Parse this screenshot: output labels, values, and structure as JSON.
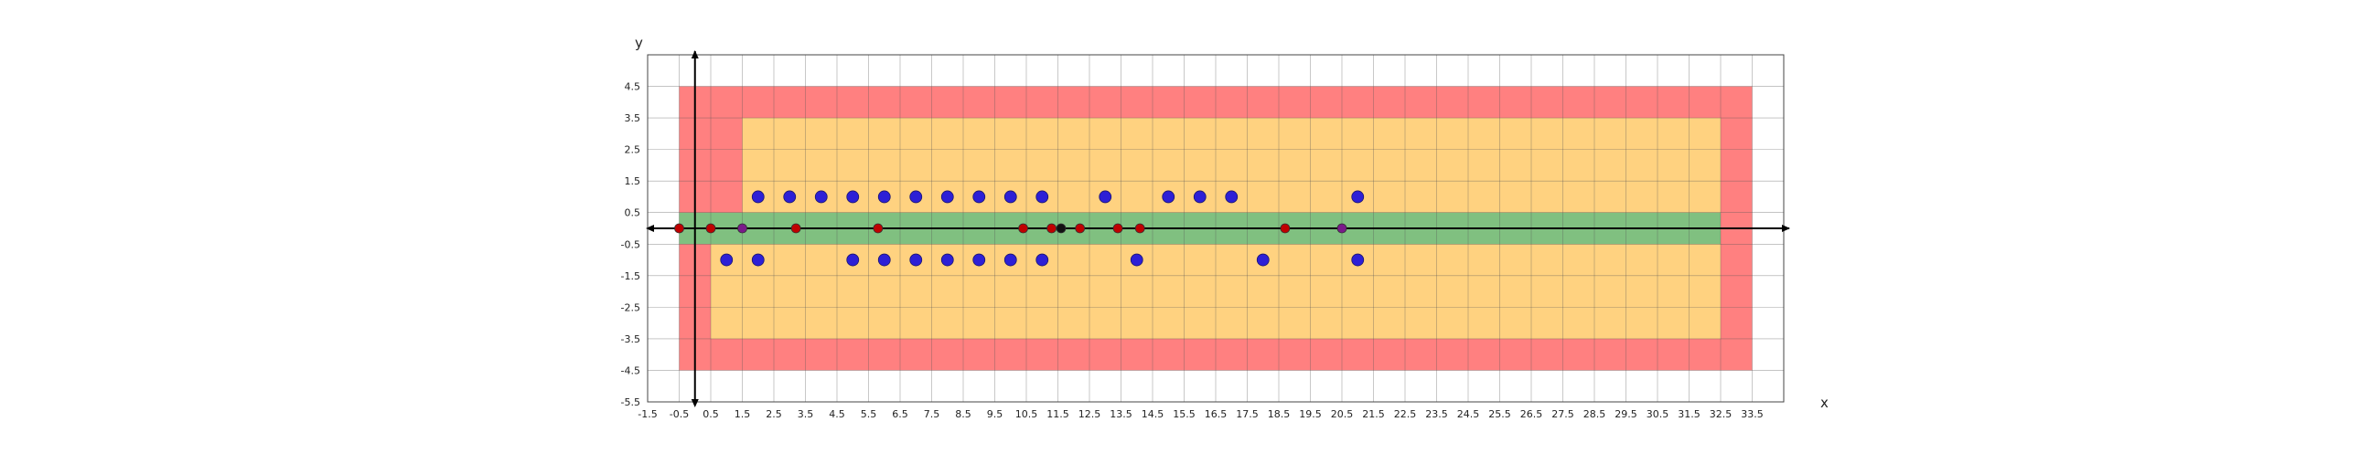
{
  "chart_data": {
    "type": "scatter",
    "title": "",
    "xlabel": "x",
    "ylabel": "y",
    "xlim": [
      -1.5,
      34.5
    ],
    "ylim": [
      -5.5,
      5.5
    ],
    "grid": true,
    "x_ticks": [
      "-1.5",
      "-0.5",
      "0.5",
      "1.5",
      "2.5",
      "3.5",
      "4.5",
      "5.5",
      "6.5",
      "7.5",
      "8.5",
      "9.5",
      "10.5",
      "11.5",
      "12.5",
      "13.5",
      "14.5",
      "15.5",
      "16.5",
      "17.5",
      "18.5",
      "19.5",
      "20.5",
      "21.5",
      "22.5",
      "23.5",
      "24.5",
      "25.5",
      "26.5",
      "27.5",
      "28.5",
      "29.5",
      "30.5",
      "31.5",
      "32.5",
      "33.5"
    ],
    "y_ticks": [
      "4.5",
      "3.5",
      "2.5",
      "1.5",
      "0.5",
      "-0.5",
      "-1.5",
      "-2.5",
      "-3.5",
      "-4.5",
      "-5.5"
    ],
    "regions": [
      {
        "name": "outer-red",
        "color": "#ff8080",
        "x": [
          -0.5,
          33.5
        ],
        "y": [
          -4.5,
          4.5
        ]
      },
      {
        "name": "upper-yellow",
        "color": "#ffd280",
        "x": [
          1.5,
          32.5
        ],
        "y": [
          0.5,
          3.5
        ]
      },
      {
        "name": "lower-yellow",
        "color": "#ffd280",
        "x": [
          0.5,
          32.5
        ],
        "y": [
          -3.5,
          -0.5
        ]
      },
      {
        "name": "middle-green",
        "color": "#80c080",
        "x": [
          -0.5,
          32.5
        ],
        "y": [
          -0.5,
          0.5
        ]
      }
    ],
    "series": [
      {
        "color": "#2d1fd6",
        "points": [
          [
            2.0,
            1.0
          ],
          [
            3.0,
            1.0
          ],
          [
            4.0,
            1.0
          ],
          [
            5.0,
            1.0
          ],
          [
            6.0,
            1.0
          ],
          [
            7.0,
            1.0
          ],
          [
            8.0,
            1.0
          ],
          [
            9.0,
            1.0
          ],
          [
            10.0,
            1.0
          ],
          [
            11.0,
            1.0
          ],
          [
            13.0,
            1.0
          ],
          [
            15.0,
            1.0
          ],
          [
            16.0,
            1.0
          ],
          [
            17.0,
            1.0
          ],
          [
            21.0,
            1.0
          ],
          [
            1.0,
            -1.0
          ],
          [
            2.0,
            -1.0
          ],
          [
            5.0,
            -1.0
          ],
          [
            6.0,
            -1.0
          ],
          [
            7.0,
            -1.0
          ],
          [
            8.0,
            -1.0
          ],
          [
            9.0,
            -1.0
          ],
          [
            10.0,
            -1.0
          ],
          [
            11.0,
            -1.0
          ],
          [
            14.0,
            -1.0
          ],
          [
            18.0,
            -1.0
          ],
          [
            21.0,
            -1.0
          ]
        ]
      },
      {
        "color": "#c00000",
        "points": [
          [
            -0.5,
            0.0
          ],
          [
            0.5,
            0.0
          ],
          [
            3.2,
            0.0
          ],
          [
            5.8,
            0.0
          ],
          [
            10.4,
            0.0
          ],
          [
            11.3,
            0.0
          ],
          [
            12.2,
            0.0
          ],
          [
            13.4,
            0.0
          ],
          [
            14.1,
            0.0
          ],
          [
            18.7,
            0.0
          ]
        ]
      },
      {
        "color": "#7a1a8a",
        "points": [
          [
            1.5,
            0.0
          ],
          [
            20.5,
            0.0
          ]
        ]
      },
      {
        "color": "#111111",
        "points": [
          [
            11.6,
            0.0
          ]
        ]
      }
    ]
  }
}
